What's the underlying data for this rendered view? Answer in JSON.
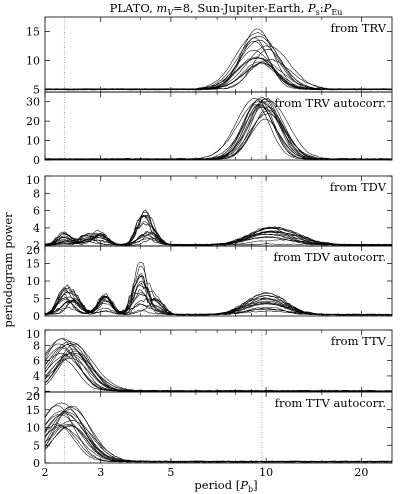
{
  "figure": {
    "title_prefix": "PLATO, ",
    "title_mv_symbol": "m",
    "title_mv_sub": "V",
    "title_mv_value": "=8, Sun-Jupiter-Earth, ",
    "title_ps_symbol": "P",
    "title_ps_sub": "s",
    "title_colon": ":",
    "title_peu_symbol": "P",
    "title_peu_sub": "Eu",
    "xlabel_main": "period [",
    "xlabel_symbol": "P",
    "xlabel_sub": "b",
    "xlabel_end": "]",
    "ylabel": "periodogram power"
  },
  "chart_data": {
    "type": "line",
    "x_scale": "log",
    "xlim": [
      2,
      25
    ],
    "x_ticks": [
      2,
      3,
      5,
      10,
      20
    ],
    "x_tick_labels": [
      "2",
      "3",
      "5",
      "10",
      "20"
    ],
    "x_minor_ticks": [
      4,
      6,
      7,
      8,
      9,
      15
    ],
    "vertical_markers": [
      2.3,
      9.7
    ],
    "panels": [
      {
        "id": "trv",
        "label": "from TRV",
        "y_tick_labels": [
          "5",
          "10",
          "15"
        ],
        "y_tick_values": [
          5,
          10,
          15
        ],
        "ylim": [
          4.6,
          17.5
        ],
        "peak_period": 9.7,
        "peak_range": [
          9.5,
          15.5
        ],
        "baseline": 5.0
      },
      {
        "id": "trv-autocorr",
        "label": "from TRV autocorr.",
        "y_tick_labels": [
          "0",
          "10",
          "20",
          "30"
        ],
        "y_tick_values": [
          0,
          10,
          20,
          30
        ],
        "ylim": [
          0,
          35
        ],
        "peak_period": 9.7,
        "peak_range": [
          20,
          32
        ],
        "baseline": 0.3
      },
      {
        "id": "tdv",
        "label": "from TDV",
        "y_tick_labels": [
          "2",
          "4",
          "6",
          "8",
          "10"
        ],
        "y_tick_values": [
          2,
          4,
          6,
          8,
          10
        ],
        "ylim": [
          1.9,
          10
        ],
        "baseline": 2.0,
        "features": [
          [
            2.3,
            3.5
          ],
          [
            2.7,
            3.3
          ],
          [
            3.0,
            3.6
          ],
          [
            4.1,
            5.9
          ],
          [
            4.4,
            3.2
          ],
          [
            10.0,
            4.0
          ],
          [
            12.0,
            3.0
          ]
        ]
      },
      {
        "id": "tdv-autocorr",
        "label": "from TDV autocorr.",
        "y_tick_labels": [
          "0",
          "5",
          "10",
          "15",
          "20"
        ],
        "y_tick_values": [
          0,
          5,
          10,
          15,
          20
        ],
        "ylim": [
          0,
          20
        ],
        "baseline": 0.3,
        "features": [
          [
            2.3,
            7.5
          ],
          [
            2.5,
            5.5
          ],
          [
            3.1,
            6.5
          ],
          [
            4.0,
            15.5
          ],
          [
            4.5,
            5.0
          ],
          [
            10.0,
            7.0
          ]
        ]
      },
      {
        "id": "ttv",
        "label": "from TTV",
        "y_tick_labels": [
          "2",
          "4",
          "6",
          "8",
          "10"
        ],
        "y_tick_values": [
          2,
          4,
          6,
          8,
          10
        ],
        "ylim": [
          1.9,
          10
        ],
        "baseline": 2.0,
        "peak_period": 2.35,
        "peak_range": [
          5.5,
          9.0
        ]
      },
      {
        "id": "ttv-autocorr",
        "label": "from TTV autocorr.",
        "y_tick_labels": [
          "0",
          "5",
          "10",
          "15",
          "20"
        ],
        "y_tick_values": [
          0,
          5,
          10,
          15,
          20
        ],
        "ylim": [
          0,
          20
        ],
        "baseline": 0.3,
        "peak_period": 2.3,
        "peak_range": [
          10,
          18
        ]
      }
    ]
  }
}
